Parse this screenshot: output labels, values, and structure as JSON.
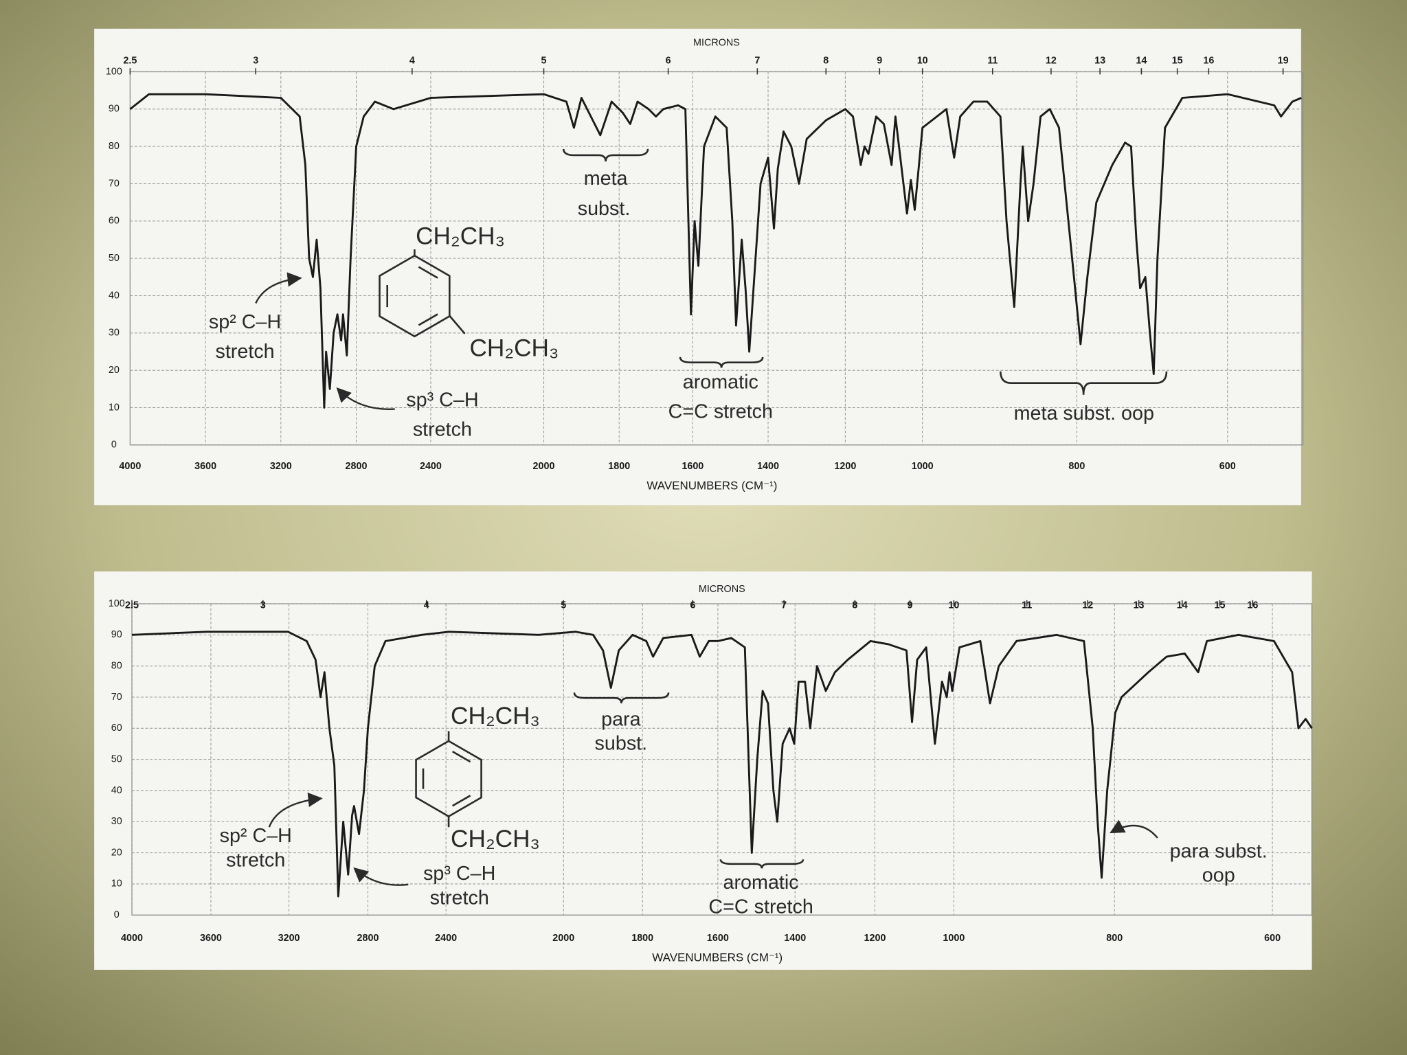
{
  "chart_data": [
    {
      "type": "line",
      "x2_label": "MICRONS",
      "x_label": "WAVENUMBERS (CM⁻¹)",
      "xlim": [
        4000,
        500
      ],
      "ylim": [
        0,
        100
      ],
      "xticks": [
        4000,
        3600,
        3200,
        2800,
        2400,
        2000,
        1800,
        1600,
        1400,
        1200,
        1000,
        800,
        600
      ],
      "x2ticks": [
        2.5,
        3,
        4,
        5,
        6,
        7,
        8,
        9,
        10,
        11,
        12,
        13,
        14,
        15,
        16,
        19
      ],
      "yticks": [
        0,
        10,
        20,
        30,
        40,
        50,
        60,
        70,
        80,
        90,
        100
      ],
      "grid": true,
      "color": "#1a1a1a",
      "x": [
        4000,
        3900,
        3600,
        3200,
        3100,
        3070,
        3050,
        3030,
        3010,
        2990,
        2970,
        2960,
        2940,
        2920,
        2900,
        2880,
        2870,
        2850,
        2830,
        2800,
        2760,
        2700,
        2600,
        2400,
        2000,
        1940,
        1920,
        1900,
        1870,
        1850,
        1820,
        1790,
        1770,
        1750,
        1720,
        1700,
        1680,
        1640,
        1620,
        1605,
        1595,
        1585,
        1570,
        1540,
        1510,
        1495,
        1485,
        1470,
        1460,
        1450,
        1440,
        1420,
        1400,
        1385,
        1375,
        1360,
        1340,
        1320,
        1300,
        1250,
        1200,
        1180,
        1160,
        1150,
        1140,
        1120,
        1100,
        1080,
        1070,
        1040,
        1030,
        1020,
        1000,
        969,
        959,
        951,
        934,
        916,
        899,
        891,
        881,
        873,
        870,
        863,
        856,
        847,
        835,
        823,
        806,
        795,
        786,
        774,
        753,
        736,
        728,
        721,
        716,
        709,
        703,
        698,
        693,
        683,
        660,
        600,
        538,
        529,
        514,
        502
      ],
      "values": [
        90,
        94,
        94,
        93,
        88,
        75,
        50,
        45,
        55,
        42,
        10,
        25,
        15,
        30,
        35,
        28,
        35,
        24,
        50,
        80,
        88,
        92,
        90,
        93,
        94,
        92,
        85,
        93,
        87,
        83,
        92,
        89,
        86,
        92,
        90,
        88,
        90,
        91,
        90,
        35,
        60,
        48,
        80,
        88,
        85,
        60,
        32,
        55,
        42,
        25,
        40,
        70,
        77,
        58,
        74,
        84,
        80,
        70,
        82,
        87,
        90,
        88,
        75,
        80,
        78,
        88,
        86,
        75,
        88,
        62,
        71,
        63,
        85,
        90,
        77,
        88,
        92,
        92,
        88,
        60,
        37,
        70,
        80,
        60,
        70,
        88,
        90,
        85,
        50,
        27,
        45,
        65,
        75,
        81,
        80,
        55,
        42,
        45,
        30,
        19,
        50,
        85,
        93,
        94,
        91,
        88,
        92,
        93
      ],
      "annotations": [
        "meta",
        "subst.",
        "CH₂CH₃",
        "CH₂CH₃",
        "sp² C–H",
        "stretch",
        "sp³ C–H",
        "stretch",
        "aromatic",
        "C=C stretch",
        "meta subst. oop"
      ]
    },
    {
      "type": "line",
      "x2_label": "MICRONS",
      "x_label": "WAVENUMBERS (CM⁻¹)",
      "xlim": [
        4000,
        550
      ],
      "ylim": [
        0,
        100
      ],
      "xticks": [
        4000,
        3600,
        3200,
        2800,
        2400,
        2000,
        1800,
        1600,
        1400,
        1200,
        1000,
        800,
        600
      ],
      "x2ticks": [
        2.5,
        3,
        4,
        5,
        6,
        7,
        8,
        9,
        10,
        11,
        12,
        13,
        14,
        15,
        16
      ],
      "yticks": [
        0,
        10,
        20,
        30,
        40,
        50,
        60,
        70,
        80,
        90,
        100
      ],
      "grid": true,
      "color": "#1a1a1a",
      "x": [
        4000,
        3620,
        3205,
        3110,
        3065,
        3040,
        3020,
        2995,
        2970,
        2950,
        2925,
        2900,
        2880,
        2870,
        2845,
        2820,
        2800,
        2765,
        2710,
        2525,
        2390,
        2085,
        1970,
        1925,
        1900,
        1880,
        1860,
        1825,
        1790,
        1772,
        1745,
        1670,
        1648,
        1624,
        1600,
        1565,
        1530,
        1512,
        1498,
        1484,
        1470,
        1456,
        1446,
        1432,
        1414,
        1402,
        1391,
        1375,
        1362,
        1345,
        1323,
        1300,
        1268,
        1211,
        1166,
        1120,
        1106,
        1093,
        1070,
        1048,
        1030,
        1018,
        1011,
        1004,
        993,
        967,
        955,
        944,
        922,
        872,
        838,
        827,
        821,
        816,
        809,
        799,
        791,
        757,
        734,
        711,
        694,
        683,
        643,
        598,
        575,
        567,
        558,
        550
      ],
      "values": [
        90,
        91,
        91,
        88,
        82,
        70,
        78,
        60,
        48,
        6,
        30,
        13,
        32,
        35,
        26,
        40,
        60,
        80,
        88,
        90,
        91,
        90,
        91,
        90,
        85,
        73,
        85,
        90,
        88,
        83,
        89,
        90,
        83,
        88,
        88,
        89,
        86,
        20,
        50,
        72,
        68,
        40,
        30,
        55,
        60,
        55,
        75,
        75,
        60,
        80,
        72,
        78,
        82,
        88,
        87,
        85,
        62,
        82,
        86,
        55,
        75,
        70,
        78,
        72,
        86,
        88,
        68,
        80,
        88,
        90,
        88,
        60,
        30,
        12,
        40,
        65,
        70,
        78,
        83,
        84,
        78,
        88,
        90,
        88,
        78,
        60,
        63,
        60
      ],
      "annotations": [
        "para",
        "subst.",
        "CH₂CH₃",
        "CH₂CH₃",
        "sp² C–H",
        "stretch",
        "sp³ C–H",
        "stretch",
        "aromatic",
        "C=C stretch",
        "para subst.",
        "oop"
      ]
    }
  ]
}
